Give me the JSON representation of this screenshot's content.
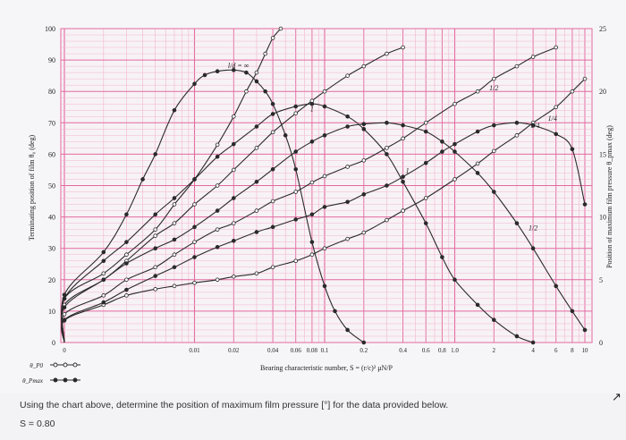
{
  "question": {
    "text": "Using the chart above, determine the position of maximum film pressure [°] for the data provided below.",
    "given": "S = 0.80"
  },
  "colors": {
    "paper": "#f7f2f5",
    "grid_major": "#e46aa0",
    "grid_minor": "#f2b6cf",
    "curve": "#2a2a2a",
    "accent_arrow": "#111111"
  },
  "icons": {
    "pointer": "arrow-up-icon"
  },
  "pointer_glyph": "↗",
  "chart_data": {
    "type": "line",
    "xscale": "log",
    "xlim": [
      0,
      10
    ],
    "ylim_left": [
      0,
      100
    ],
    "ylim_right": [
      0,
      25
    ],
    "xticks": [
      "0",
      "0.01",
      "0.02",
      "0.04",
      "0.06",
      "0.08",
      "0.1",
      "0.2",
      "0.4",
      "0.6",
      "0.8",
      "1.0",
      "2",
      "4",
      "6",
      "8",
      "10"
    ],
    "xticks_values": [
      0,
      0.01,
      0.02,
      0.04,
      0.06,
      0.08,
      0.1,
      0.2,
      0.4,
      0.6,
      0.8,
      1.0,
      2,
      4,
      6,
      8,
      10
    ],
    "yticks_left": [
      "0",
      "10",
      "20",
      "30",
      "40",
      "50",
      "60",
      "70",
      "80",
      "90",
      "100"
    ],
    "yticks_right": [
      "0",
      "5",
      "10",
      "15",
      "20",
      "25"
    ],
    "ylabel": "Terminating position of film θ₀ (deg)",
    "ylabel_right": "Position of maximum film pressure θ_pmax (deg)",
    "xlabel": "Bearing characteristic number, S = (r/c)² μN/P",
    "legend": [
      {
        "symbol": "θ_P0",
        "marker": "open"
      },
      {
        "symbol": "θ_Pmax",
        "marker": "filled"
      }
    ],
    "grid": true,
    "series": [
      {
        "name": "l/d = ∞",
        "axis": "left",
        "marker": "open",
        "x": [
          0,
          0.001,
          0.002,
          0.003,
          0.005,
          0.007,
          0.01,
          0.015,
          0.02,
          0.025,
          0.03,
          0.035,
          0.04,
          0.046
        ],
        "y": [
          0,
          14,
          22,
          28,
          36,
          44,
          52,
          63,
          72,
          80,
          86,
          92,
          97,
          100
        ]
      },
      {
        "name": "1",
        "axis": "left",
        "marker": "open",
        "x": [
          0,
          0.001,
          0.002,
          0.003,
          0.005,
          0.007,
          0.01,
          0.015,
          0.02,
          0.03,
          0.04,
          0.06,
          0.08,
          0.1,
          0.15,
          0.2,
          0.3,
          0.4
        ],
        "y": [
          0,
          12,
          20,
          26,
          34,
          38,
          44,
          50,
          55,
          62,
          67,
          73,
          77,
          80,
          85,
          88,
          92,
          94
        ]
      },
      {
        "name": "1/2",
        "axis": "left",
        "marker": "open",
        "x": [
          0,
          0.001,
          0.002,
          0.003,
          0.005,
          0.007,
          0.01,
          0.015,
          0.02,
          0.03,
          0.04,
          0.06,
          0.08,
          0.1,
          0.15,
          0.2,
          0.3,
          0.4,
          0.6,
          1.0,
          1.5,
          2,
          3,
          4,
          6
        ],
        "y": [
          0,
          9,
          15,
          20,
          24,
          28,
          32,
          36,
          38,
          42,
          45,
          48,
          51,
          53,
          56,
          58,
          62,
          65,
          70,
          76,
          80,
          84,
          88,
          91,
          94
        ]
      },
      {
        "name": "1/4",
        "axis": "left",
        "marker": "open",
        "x": [
          0,
          0.001,
          0.002,
          0.003,
          0.005,
          0.007,
          0.01,
          0.015,
          0.02,
          0.03,
          0.04,
          0.06,
          0.08,
          0.1,
          0.15,
          0.2,
          0.3,
          0.4,
          0.6,
          1.0,
          1.5,
          2,
          3,
          4,
          6,
          8,
          10
        ],
        "y": [
          0,
          7,
          12,
          15,
          17,
          18,
          19,
          20,
          21,
          22,
          24,
          26,
          28,
          30,
          33,
          35,
          39,
          42,
          46,
          52,
          57,
          61,
          66,
          70,
          75,
          80,
          84
        ]
      },
      {
        "name": "l/d = ∞",
        "axis": "right",
        "marker": "filled",
        "x": [
          0,
          0.001,
          0.002,
          0.003,
          0.004,
          0.005,
          0.007,
          0.01,
          0.012,
          0.015,
          0.02,
          0.025,
          0.03,
          0.035,
          0.04,
          0.05,
          0.06,
          0.08,
          0.1,
          0.12,
          0.15,
          0.2
        ],
        "y": [
          0,
          3.8,
          7.2,
          10.2,
          13,
          15,
          18.5,
          20.6,
          21.3,
          21.6,
          21.7,
          21.5,
          20.8,
          20,
          19,
          16.5,
          13.8,
          8,
          4.5,
          2.5,
          1,
          0
        ]
      },
      {
        "name": "1",
        "axis": "right",
        "marker": "filled",
        "x": [
          0,
          0.001,
          0.002,
          0.003,
          0.005,
          0.007,
          0.01,
          0.015,
          0.02,
          0.03,
          0.04,
          0.06,
          0.08,
          0.1,
          0.15,
          0.2,
          0.3,
          0.4,
          0.6,
          0.8,
          1.0,
          1.5,
          2,
          3,
          4
        ],
        "y": [
          0,
          3.5,
          6.5,
          8,
          10.2,
          11.5,
          13,
          14.8,
          15.8,
          17.2,
          18.2,
          18.8,
          19,
          18.8,
          18,
          17,
          15,
          12.8,
          9.5,
          6.8,
          5,
          3,
          1.8,
          0.5,
          0
        ]
      },
      {
        "name": "1/2",
        "axis": "right",
        "marker": "filled",
        "x": [
          0,
          0.001,
          0.002,
          0.003,
          0.005,
          0.007,
          0.01,
          0.015,
          0.02,
          0.03,
          0.04,
          0.06,
          0.08,
          0.1,
          0.15,
          0.2,
          0.3,
          0.4,
          0.6,
          0.8,
          1.0,
          1.5,
          2,
          3,
          4,
          6,
          8,
          10
        ],
        "y": [
          0,
          2.8,
          5,
          6.3,
          7.5,
          8.2,
          9.2,
          10.5,
          11.5,
          12.8,
          13.8,
          15.2,
          16,
          16.5,
          17.2,
          17.4,
          17.5,
          17.3,
          16.8,
          16,
          15.2,
          13.5,
          12,
          9.5,
          7.5,
          4.5,
          2.5,
          1
        ]
      },
      {
        "name": "1/4",
        "axis": "right",
        "marker": "filled",
        "x": [
          0,
          0.001,
          0.002,
          0.003,
          0.005,
          0.007,
          0.01,
          0.015,
          0.02,
          0.03,
          0.04,
          0.06,
          0.08,
          0.1,
          0.15,
          0.2,
          0.3,
          0.4,
          0.6,
          0.8,
          1.0,
          1.5,
          2,
          3,
          4,
          6,
          8,
          10
        ],
        "y": [
          0,
          1.8,
          3.2,
          4.2,
          5.3,
          6,
          6.8,
          7.6,
          8.1,
          8.8,
          9.2,
          9.8,
          10.2,
          10.8,
          11.2,
          11.8,
          12.5,
          13.2,
          14.3,
          15.2,
          15.8,
          16.8,
          17.3,
          17.5,
          17.3,
          16.6,
          15.4,
          11
        ]
      }
    ],
    "curve_labels": [
      {
        "text": "l/d = ∞",
        "anchor_series": 0
      },
      {
        "text": "1",
        "anchor_series": 1
      },
      {
        "text": "1/2",
        "anchor_series": 2
      },
      {
        "text": "1/4",
        "anchor_series": 3
      },
      {
        "text": "1",
        "anchor_series": 5
      },
      {
        "text": "1/2",
        "anchor_series": 6
      },
      {
        "text": "1/4",
        "anchor_series": 7
      }
    ]
  }
}
